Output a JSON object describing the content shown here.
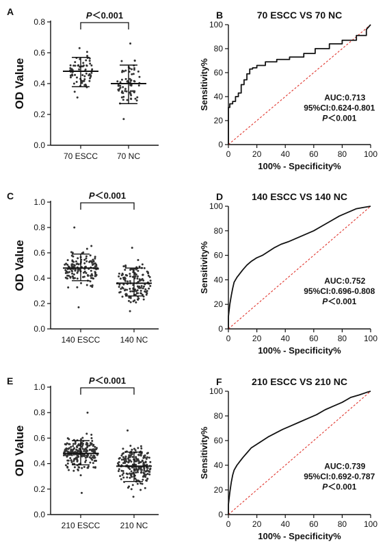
{
  "chart_data": [
    {
      "panel": "A",
      "type": "scatter",
      "ylabel": "OD Value",
      "categories": [
        "70 ESCC",
        "70 NC"
      ],
      "yticks": [
        "0.0",
        "0.2",
        "0.4",
        "0.6",
        "0.8"
      ],
      "ylim": [
        0,
        0.8
      ],
      "series": [
        {
          "mean": 0.48,
          "sd_low": 0.38,
          "sd_high": 0.57,
          "n": 70,
          "min": 0.31,
          "max": 0.63
        },
        {
          "mean": 0.4,
          "sd_low": 0.27,
          "sd_high": 0.52,
          "n": 70,
          "min": 0.17,
          "max": 0.66
        }
      ],
      "significance": "P<0.001",
      "sig_prefix": "P",
      "sig_suffix": "<0.001"
    },
    {
      "panel": "B",
      "type": "line",
      "title": "70 ESCC VS 70 NC",
      "xlabel": "100% - Specificity%",
      "ylabel": "Sensitivity%",
      "ticks": [
        "0",
        "20",
        "40",
        "60",
        "80",
        "100"
      ],
      "xlim": [
        0,
        100
      ],
      "ylim": [
        0,
        100
      ],
      "x": [
        0,
        0,
        1,
        1,
        3,
        3,
        5,
        5,
        7,
        7,
        9,
        9,
        11,
        11,
        13,
        13,
        15,
        15,
        17,
        17,
        20,
        20,
        26,
        26,
        34,
        34,
        43,
        43,
        53,
        53,
        61,
        61,
        71,
        71,
        80,
        80,
        90,
        90,
        97,
        97,
        100
      ],
      "y": [
        0,
        31,
        31,
        34,
        34,
        36,
        36,
        40,
        40,
        43,
        43,
        50,
        50,
        54,
        54,
        59,
        59,
        63,
        63,
        64,
        64,
        66,
        66,
        69,
        69,
        71,
        71,
        73,
        73,
        76,
        76,
        80,
        80,
        84,
        84,
        87,
        87,
        91,
        91,
        96,
        100
      ],
      "auc": "AUC:0.713",
      "ci": "95%CI:0.624-0.801",
      "p_prefix": "P",
      "p_suffix": "<0.001"
    },
    {
      "panel": "C",
      "type": "scatter",
      "ylabel": "OD Value",
      "categories": [
        "140 ESCC",
        "140 NC"
      ],
      "yticks": [
        "0.0",
        "0.2",
        "0.4",
        "0.6",
        "0.8",
        "1.0"
      ],
      "ylim": [
        0,
        1.0
      ],
      "series": [
        {
          "mean": 0.48,
          "sd_low": 0.38,
          "sd_high": 0.59,
          "n": 140,
          "min": 0.17,
          "max": 0.8
        },
        {
          "mean": 0.36,
          "sd_low": 0.26,
          "sd_high": 0.48,
          "n": 140,
          "min": 0.14,
          "max": 0.64
        }
      ],
      "significance": "P<0.001",
      "sig_prefix": "P",
      "sig_suffix": "<0.001"
    },
    {
      "panel": "D",
      "type": "line",
      "title": "140 ESCC VS 140 NC",
      "xlabel": "100% - Specificity%",
      "ylabel": "Sensitivity%",
      "ticks": [
        "0",
        "20",
        "40",
        "60",
        "80",
        "100"
      ],
      "xlim": [
        0,
        100
      ],
      "ylim": [
        0,
        100
      ],
      "x": [
        0,
        0,
        1,
        2,
        3,
        4,
        6,
        8,
        10,
        13,
        16,
        20,
        24,
        28,
        32,
        37,
        42,
        48,
        54,
        60,
        66,
        72,
        78,
        84,
        90,
        95,
        100
      ],
      "y": [
        0,
        10,
        20,
        27,
        33,
        38,
        42,
        45,
        48,
        52,
        55,
        58,
        60,
        63,
        66,
        69,
        71,
        74,
        77,
        80,
        84,
        88,
        92,
        95,
        98,
        99,
        100
      ],
      "auc": "AUC:0.752",
      "ci": "95%CI:0.696-0.808",
      "p_prefix": "P",
      "p_suffix": "<0.001"
    },
    {
      "panel": "E",
      "type": "scatter",
      "ylabel": "OD Value",
      "categories": [
        "210 ESCC",
        "210 NC"
      ],
      "yticks": [
        "0.0",
        "0.2",
        "0.4",
        "0.6",
        "0.8",
        "1.0"
      ],
      "ylim": [
        0,
        1.0
      ],
      "series": [
        {
          "mean": 0.48,
          "sd_low": 0.39,
          "sd_high": 0.58,
          "n": 210,
          "min": 0.17,
          "max": 0.8
        },
        {
          "mean": 0.38,
          "sd_low": 0.26,
          "sd_high": 0.49,
          "n": 210,
          "min": 0.14,
          "max": 0.66
        }
      ],
      "significance": "P<0.001",
      "sig_prefix": "P",
      "sig_suffix": "<0.001"
    },
    {
      "panel": "F",
      "type": "line",
      "title": "210 ESCC VS 210 NC",
      "xlabel": "100% - Specificity%",
      "ylabel": "Sensitivity%",
      "ticks": [
        "0",
        "20",
        "40",
        "60",
        "80",
        "100"
      ],
      "xlim": [
        0,
        100
      ],
      "ylim": [
        0,
        100
      ],
      "x": [
        0,
        0,
        1,
        2,
        3,
        4,
        6,
        8,
        10,
        13,
        16,
        20,
        24,
        28,
        33,
        38,
        44,
        50,
        56,
        62,
        68,
        74,
        80,
        86,
        92,
        97,
        100
      ],
      "y": [
        0,
        8,
        18,
        26,
        32,
        36,
        40,
        43,
        46,
        50,
        54,
        57,
        60,
        63,
        66,
        69,
        72,
        75,
        78,
        81,
        85,
        88,
        91,
        95,
        97,
        99,
        100
      ],
      "auc": "AUC:0.739",
      "ci": "95%CI:0.692-0.787",
      "p_prefix": "P",
      "p_suffix": "<0.001"
    }
  ]
}
